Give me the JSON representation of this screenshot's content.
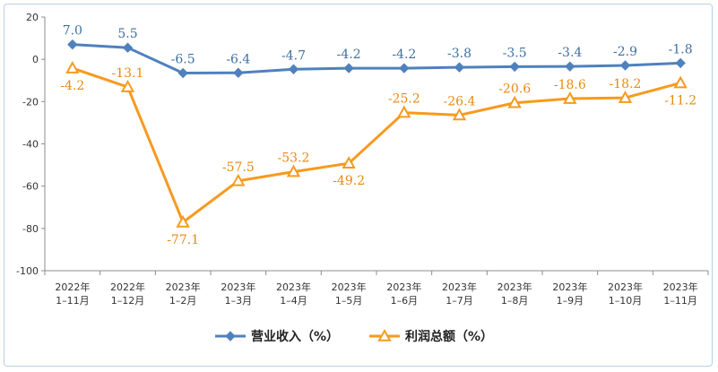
{
  "chart_data": {
    "type": "line",
    "categories": [
      [
        "2022年",
        "1–11月"
      ],
      [
        "2022年",
        "1–12月"
      ],
      [
        "2023年",
        "1–2月"
      ],
      [
        "2023年",
        "1–3月"
      ],
      [
        "2023年",
        "1–4月"
      ],
      [
        "2023年",
        "1–5月"
      ],
      [
        "2023年",
        "1–6月"
      ],
      [
        "2023年",
        "1–7月"
      ],
      [
        "2023年",
        "1–8月"
      ],
      [
        "2023年",
        "1–9月"
      ],
      [
        "2023年",
        "1–10月"
      ],
      [
        "2023年",
        "1–11月"
      ]
    ],
    "ylim": [
      -100,
      20
    ],
    "yticks": [
      20,
      0,
      -20,
      -40,
      -60,
      -80,
      -100
    ],
    "grid": false,
    "legend_position": "bottom",
    "series": [
      {
        "name": "营业收入（%）",
        "marker": "diamond",
        "color": "#4f81bd",
        "values": [
          7.0,
          5.5,
          -6.5,
          -6.4,
          -4.7,
          -4.2,
          -4.2,
          -3.8,
          -3.5,
          -3.4,
          -2.9,
          -1.8
        ],
        "labels": [
          "7.0",
          "5.5",
          "-6.5",
          "-6.4",
          "-4.7",
          "-4.2",
          "-4.2",
          "-3.8",
          "-3.5",
          "-3.4",
          "-2.9",
          "-1.8"
        ],
        "label_position": "above"
      },
      {
        "name": "利润总额（%）",
        "marker": "triangle",
        "color": "#f79a1e",
        "values": [
          -4.2,
          -13.1,
          -77.1,
          -57.5,
          -53.2,
          -49.2,
          -25.2,
          -26.4,
          -20.6,
          -18.6,
          -18.2,
          -11.2
        ],
        "labels": [
          "-4.2",
          "-13.1",
          "-77.1",
          "-57.5",
          "-53.2",
          "-49.2",
          "-25.2",
          "-26.4",
          "-20.6",
          "-18.6",
          "-18.2",
          "-11.2"
        ],
        "label_position": [
          "below",
          "above",
          "below",
          "above",
          "above",
          "below",
          "above",
          "above",
          "above",
          "above",
          "above",
          "below"
        ]
      }
    ]
  }
}
